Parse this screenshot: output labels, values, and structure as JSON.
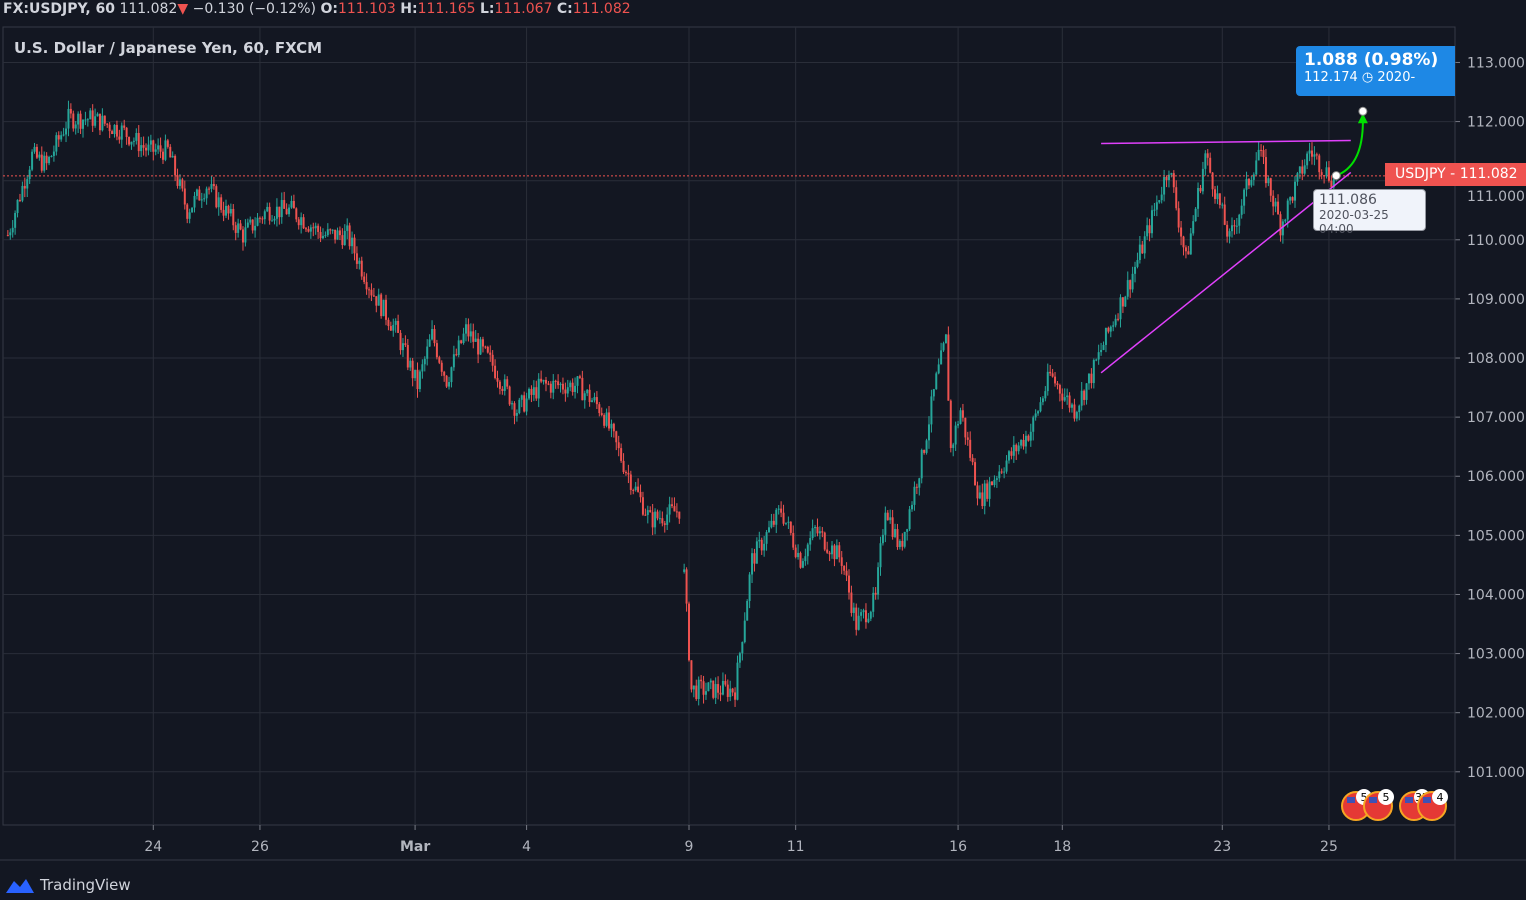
{
  "header": {
    "symbol": "FX:USDJPY, 60",
    "last": "111.082",
    "change": "−0.130 (−0.12%)",
    "o_label": "O:",
    "o": "111.103",
    "h_label": "H:",
    "h": "111.165",
    "l_label": "L:",
    "l": "111.067",
    "c_label": "C:",
    "c": "111.082",
    "direction": "down"
  },
  "title": "U.S. Dollar / Japanese Yen, 60, FXCM",
  "price_label": {
    "symbol": "USDJPY",
    "value": "111.082"
  },
  "measure": {
    "change": "1.088 (0.98%)",
    "target": "112.174",
    "date": "2020-"
  },
  "tooltip": {
    "price": "111.086",
    "date": "2020-03-25 04:00"
  },
  "events": {
    "badges": [
      "5",
      "5",
      "37",
      "4"
    ],
    "icon": "us-flag-icon"
  },
  "footer": {
    "brand": "TradingView",
    "icon": "tradingview-logo-icon"
  },
  "colors": {
    "background": "#131722",
    "up": "#26a69a",
    "down": "#ef5350",
    "trendline": "#e040fb",
    "arrow": "#00e000",
    "measure": "#1e88e5"
  },
  "chart_data": {
    "type": "candlestick",
    "title": "U.S. Dollar / Japanese Yen, 60, FXCM",
    "interval": "60",
    "ylim": [
      100.1,
      113.6
    ],
    "y_ticks": [
      "101.000",
      "102.000",
      "103.000",
      "104.000",
      "105.000",
      "106.000",
      "107.000",
      "108.000",
      "109.000",
      "110.000",
      "111.000",
      "112.000",
      "113.000"
    ],
    "x_ticks": [
      {
        "label": "24",
        "bar": 60
      },
      {
        "label": "26",
        "bar": 104
      },
      {
        "label": "Mar",
        "bar": 168
      },
      {
        "label": "4",
        "bar": 214
      },
      {
        "label": "9",
        "bar": 281
      },
      {
        "label": "11",
        "bar": 325
      },
      {
        "label": "16",
        "bar": 392
      },
      {
        "label": "18",
        "bar": 435
      },
      {
        "label": "23",
        "bar": 501
      },
      {
        "label": "25",
        "bar": 545
      }
    ],
    "xlim": [
      -2,
      597
    ],
    "grid": true,
    "close_path": [
      [
        0,
        110.08
      ],
      [
        10,
        111.43
      ],
      [
        16,
        111.26
      ],
      [
        25,
        112.05
      ],
      [
        35,
        112.05
      ],
      [
        47,
        111.85
      ],
      [
        58,
        111.51
      ],
      [
        66,
        111.51
      ],
      [
        74,
        110.5
      ],
      [
        82,
        110.92
      ],
      [
        97,
        110.08
      ],
      [
        107,
        110.5
      ],
      [
        117,
        110.5
      ],
      [
        130,
        110.08
      ],
      [
        140,
        110.08
      ],
      [
        150,
        109.15
      ],
      [
        160,
        108.47
      ],
      [
        169,
        107.54
      ],
      [
        175,
        108.39
      ],
      [
        181,
        107.63
      ],
      [
        189,
        108.47
      ],
      [
        200,
        107.88
      ],
      [
        210,
        107.12
      ],
      [
        220,
        107.54
      ],
      [
        235,
        107.54
      ],
      [
        245,
        107.12
      ],
      [
        255,
        106.11
      ],
      [
        265,
        105.26
      ],
      [
        277,
        105.43
      ],
      [
        279,
        104.33
      ],
      [
        282,
        102.39
      ],
      [
        290,
        102.39
      ],
      [
        300,
        102.39
      ],
      [
        307,
        104.59
      ],
      [
        319,
        105.43
      ],
      [
        327,
        104.59
      ],
      [
        333,
        105.09
      ],
      [
        344,
        104.59
      ],
      [
        350,
        103.49
      ],
      [
        358,
        103.91
      ],
      [
        362,
        105.52
      ],
      [
        368,
        104.76
      ],
      [
        377,
        106.28
      ],
      [
        383,
        107.63
      ],
      [
        387,
        108.3
      ],
      [
        389,
        106.45
      ],
      [
        393,
        107.12
      ],
      [
        401,
        105.6
      ],
      [
        409,
        106.11
      ],
      [
        422,
        106.78
      ],
      [
        430,
        107.71
      ],
      [
        440,
        107.12
      ],
      [
        447,
        107.71
      ],
      [
        451,
        108.14
      ],
      [
        463,
        109.32
      ],
      [
        469,
        109.99
      ],
      [
        479,
        111.26
      ],
      [
        486,
        109.65
      ],
      [
        494,
        111.43
      ],
      [
        504,
        109.99
      ],
      [
        516,
        111.51
      ],
      [
        525,
        110.25
      ],
      [
        537,
        111.51
      ],
      [
        547,
        111.0
      ],
      [
        548,
        111.082
      ]
    ],
    "last_price": 111.082,
    "drawings": [
      {
        "type": "horizontal-resistance",
        "from": [
          451,
          111.63
        ],
        "to": [
          554,
          111.68
        ]
      },
      {
        "type": "rising-support",
        "from": [
          451,
          107.75
        ],
        "to": [
          554,
          111.14
        ]
      },
      {
        "type": "projection-arrow",
        "from": [
          548,
          111.086
        ],
        "to": [
          559,
          112.174
        ]
      }
    ]
  }
}
